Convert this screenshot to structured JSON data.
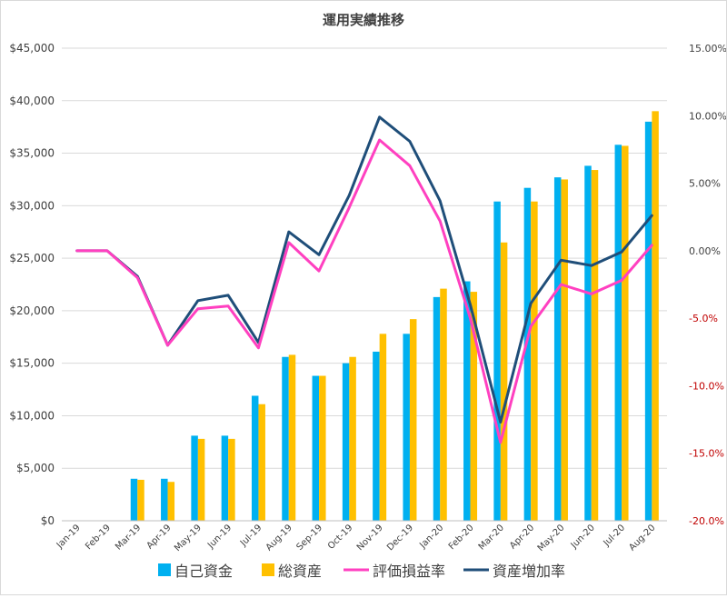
{
  "chart_data": {
    "type": "bar",
    "title": "運用実績推移",
    "xlabel": "",
    "ylabel": "",
    "categories": [
      "Jan-19",
      "Feb-19",
      "Mar-19",
      "Apr-19",
      "May-19",
      "Jun-19",
      "Jul-19",
      "Aug-19",
      "Sep-19",
      "Oct-19",
      "Nov-19",
      "Dec-19",
      "Jan-20",
      "Feb-20",
      "Mar-20",
      "Apr-20",
      "May-20",
      "Jun-20",
      "Jul-20",
      "Aug-20"
    ],
    "ylim": [
      0,
      45000
    ],
    "y2lim": [
      -0.2,
      0.15
    ],
    "y_ticks": [
      "$0",
      "$5,000",
      "$10,000",
      "$15,000",
      "$20,000",
      "$25,000",
      "$30,000",
      "$35,000",
      "$40,000",
      "$45,000"
    ],
    "y2_ticks": [
      "-20.0%",
      "-15.0%",
      "-10.0%",
      "-5.0%",
      "0.00%",
      "5.00%",
      "10.00%",
      "15.00%"
    ],
    "bar_series": [
      {
        "name": "自己資金",
        "color": "#00b0f0",
        "values": [
          0,
          0,
          4000,
          4000,
          8100,
          8100,
          11900,
          15600,
          13800,
          15000,
          16100,
          17800,
          21300,
          22800,
          30400,
          31700,
          32700,
          33800,
          35800,
          38000
        ]
      },
      {
        "name": "総資産",
        "color": "#ffc000",
        "values": [
          0,
          0,
          3900,
          3700,
          7800,
          7800,
          11100,
          15800,
          13800,
          15600,
          17800,
          19200,
          22100,
          21800,
          26500,
          30400,
          32500,
          33400,
          35700,
          39000
        ]
      }
    ],
    "line_series": [
      {
        "name": "評価損益率",
        "color": "#ff40c0",
        "axis": "secondary",
        "values": [
          0.0,
          0.0,
          -0.02,
          -0.07,
          -0.043,
          -0.041,
          -0.072,
          0.006,
          -0.015,
          0.032,
          0.082,
          0.063,
          0.022,
          -0.05,
          -0.142,
          -0.056,
          -0.025,
          -0.032,
          -0.022,
          0.004
        ]
      },
      {
        "name": "資産増加率",
        "color": "#1f4e79",
        "axis": "secondary",
        "values": [
          0.0,
          0.0,
          -0.019,
          -0.07,
          -0.037,
          -0.033,
          -0.068,
          0.014,
          -0.003,
          0.041,
          0.099,
          0.081,
          0.037,
          -0.04,
          -0.127,
          -0.039,
          -0.007,
          -0.011,
          -0.001,
          0.026
        ]
      }
    ],
    "grid": true,
    "legend_position": "bottom",
    "colors": {
      "negative_axis_label": "#c00000",
      "grid": "#d9d9d9",
      "axis_text": "#404040"
    }
  }
}
